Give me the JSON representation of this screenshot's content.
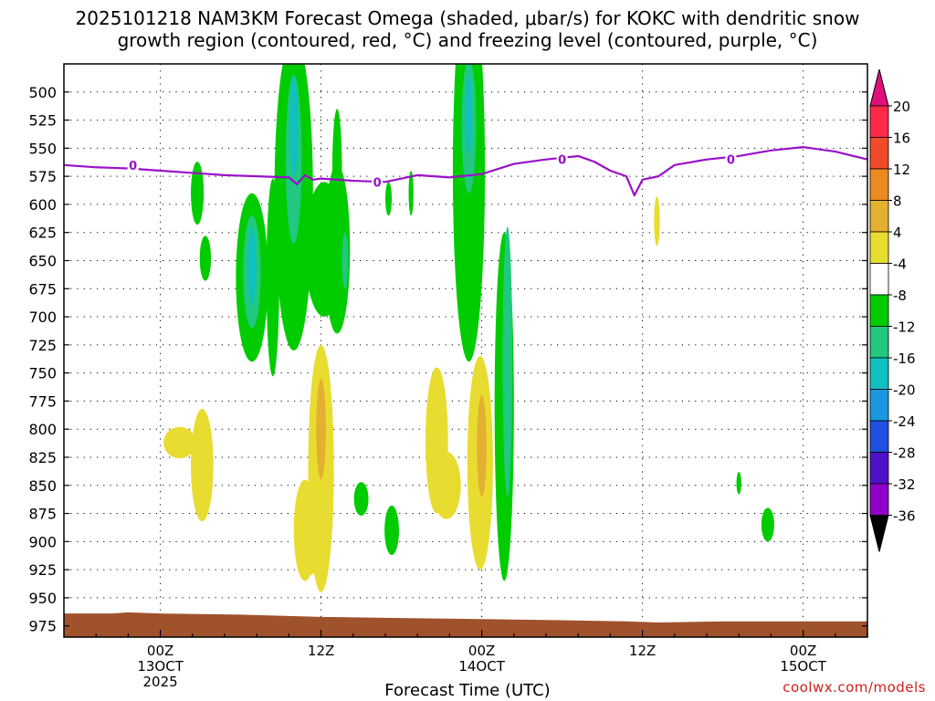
{
  "chart_data": {
    "type": "heatmap",
    "title_line1": "2025101218 NAM3KM Forecast Omega (shaded, μbar/s) for KOKC with dendritic snow",
    "title_line2": "growth region (contoured, red, °C) and freezing level (contoured, purple, °C)",
    "xlabel": "Forecast Time (UTC)",
    "credit": "coolwx.com/models",
    "x_range_hours": [
      -6,
      44
    ],
    "y_range_hpa": [
      475,
      985
    ],
    "y_ticks": [
      500,
      525,
      550,
      575,
      600,
      625,
      650,
      675,
      700,
      725,
      750,
      775,
      800,
      825,
      850,
      875,
      900,
      925,
      950,
      975
    ],
    "x_ticks": [
      {
        "hour": 0,
        "line1": "00Z",
        "line2": "13OCT",
        "line3": "2025"
      },
      {
        "hour": 10,
        "line1": "12Z",
        "line2": "",
        "line3": ""
      },
      {
        "hour": 20,
        "line1": "00Z",
        "line2": "14OCT",
        "line3": ""
      },
      {
        "hour": 30,
        "line1": "12Z",
        "line2": "",
        "line3": ""
      },
      {
        "hour": 40,
        "line1": "00Z",
        "line2": "15OCT",
        "line3": ""
      }
    ],
    "colorbar": {
      "labels": [
        20,
        16,
        12,
        8,
        4,
        -4,
        -8,
        -12,
        -16,
        -20,
        -24,
        -28,
        -32,
        -36
      ],
      "colors": [
        "#ff2a4a",
        "#f04a2a",
        "#ec8a20",
        "#e4b030",
        "#e8dc30",
        "#ffffff",
        "#00cc00",
        "#20c880",
        "#10c0c0",
        "#1898e0",
        "#2050e0",
        "#5010c8",
        "#8e00c8",
        "#aaaaaa"
      ],
      "top_arrow_color": "#e0107a",
      "bottom_arrow_color": "#000000"
    },
    "freezing_level": {
      "label": "0",
      "hour": [
        -6,
        -4,
        -2,
        0,
        2,
        4,
        6,
        8,
        8.5,
        9,
        9.5,
        10,
        12,
        14,
        16,
        18,
        20,
        22,
        24,
        26,
        27,
        28,
        29,
        29.5,
        30,
        31,
        32,
        34,
        36,
        38,
        40,
        42,
        44
      ],
      "hpa": [
        565,
        567,
        568,
        570,
        572,
        574,
        575,
        576,
        582,
        574,
        578,
        577,
        579,
        580,
        574,
        576,
        573,
        564,
        560,
        557,
        562,
        570,
        575,
        592,
        578,
        575,
        565,
        560,
        557,
        552,
        549,
        553,
        560
      ],
      "label_positions": [
        {
          "hour": -1.7,
          "hpa": 565
        },
        {
          "hour": 13.5,
          "hpa": 580
        },
        {
          "hour": 25,
          "hpa": 560
        },
        {
          "hour": 35.5,
          "hpa": 560
        }
      ]
    },
    "omega_regions": [
      {
        "value": -6,
        "cx": 2.3,
        "cy": 590,
        "rx": 0.4,
        "ry": 28
      },
      {
        "value": -6,
        "cx": 2.8,
        "cy": 648,
        "rx": 0.35,
        "ry": 20
      },
      {
        "value": -6,
        "cx": 5.7,
        "cy": 665,
        "rx": 1.0,
        "ry": 75
      },
      {
        "value": -10,
        "cx": 5.7,
        "cy": 660,
        "rx": 0.55,
        "ry": 50
      },
      {
        "value": -14,
        "cx": 5.7,
        "cy": 655,
        "rx": 0.25,
        "ry": 35
      },
      {
        "value": -6,
        "cx": 7.0,
        "cy": 665,
        "rx": 0.4,
        "ry": 88
      },
      {
        "value": -6,
        "cx": 8.3,
        "cy": 590,
        "rx": 1.2,
        "ry": 140
      },
      {
        "value": -10,
        "cx": 8.3,
        "cy": 560,
        "rx": 0.5,
        "ry": 75
      },
      {
        "value": -14,
        "cx": 8.3,
        "cy": 530,
        "rx": 0.25,
        "ry": 45
      },
      {
        "value": -6,
        "cx": 10.2,
        "cy": 640,
        "rx": 1.2,
        "ry": 60
      },
      {
        "value": -6,
        "cx": 11.0,
        "cy": 640,
        "rx": 0.8,
        "ry": 75
      },
      {
        "value": -6,
        "cx": 11.0,
        "cy": 570,
        "rx": 0.3,
        "ry": 55
      },
      {
        "value": -10,
        "cx": 11.5,
        "cy": 650,
        "rx": 0.2,
        "ry": 25
      },
      {
        "value": -6,
        "cx": 14.2,
        "cy": 595,
        "rx": 0.2,
        "ry": 15
      },
      {
        "value": -6,
        "cx": 15.6,
        "cy": 590,
        "rx": 0.15,
        "ry": 20
      },
      {
        "value": -6,
        "cx": 19.2,
        "cy": 570,
        "rx": 1.0,
        "ry": 170
      },
      {
        "value": -10,
        "cx": 19.2,
        "cy": 530,
        "rx": 0.45,
        "ry": 60
      },
      {
        "value": -14,
        "cx": 19.2,
        "cy": 520,
        "rx": 0.2,
        "ry": 35
      },
      {
        "value": -6,
        "cx": 21.4,
        "cy": 780,
        "rx": 0.6,
        "ry": 155
      },
      {
        "value": -10,
        "cx": 21.6,
        "cy": 740,
        "rx": 0.3,
        "ry": 120
      },
      {
        "value": -6,
        "cx": 12.5,
        "cy": 862,
        "rx": 0.45,
        "ry": 15
      },
      {
        "value": -6,
        "cx": 14.4,
        "cy": 890,
        "rx": 0.45,
        "ry": 22
      },
      {
        "value": -6,
        "cx": 36.0,
        "cy": 848,
        "rx": 0.15,
        "ry": 10
      },
      {
        "value": -6,
        "cx": 37.8,
        "cy": 885,
        "rx": 0.4,
        "ry": 15
      }
    ],
    "positive_regions": [
      {
        "value": 5,
        "cx": 1.2,
        "cy": 812,
        "rx": 1.0,
        "ry": 14
      },
      {
        "value": 5,
        "cx": 2.6,
        "cy": 832,
        "rx": 0.7,
        "ry": 50
      },
      {
        "value": 5,
        "cx": 9.0,
        "cy": 890,
        "rx": 0.7,
        "ry": 45
      },
      {
        "value": 5,
        "cx": 9.3,
        "cy": 900,
        "rx": 0.7,
        "ry": 30
      },
      {
        "value": 5,
        "cx": 10.0,
        "cy": 835,
        "rx": 0.8,
        "ry": 110
      },
      {
        "value": 9,
        "cx": 10.0,
        "cy": 800,
        "rx": 0.3,
        "ry": 45
      },
      {
        "value": 5,
        "cx": 17.2,
        "cy": 810,
        "rx": 0.7,
        "ry": 65
      },
      {
        "value": 5,
        "cx": 17.8,
        "cy": 850,
        "rx": 0.9,
        "ry": 30
      },
      {
        "value": 5,
        "cx": 19.9,
        "cy": 830,
        "rx": 0.8,
        "ry": 95
      },
      {
        "value": 9,
        "cx": 20.0,
        "cy": 815,
        "rx": 0.3,
        "ry": 45
      },
      {
        "value": 5,
        "cx": 30.9,
        "cy": 615,
        "rx": 0.18,
        "ry": 22
      }
    ]
  }
}
